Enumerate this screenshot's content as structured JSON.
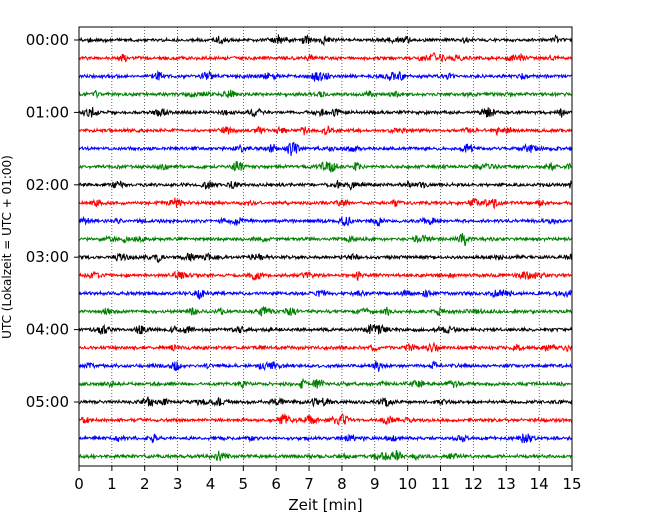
{
  "chart_data": {
    "type": "line",
    "title": "",
    "xlabel": "Zeit  [min]",
    "ylabel": "UTC (Lokalzeit = UTC + 01:00)",
    "xlim": [
      0,
      15
    ],
    "x_ticks": [
      "0",
      "1",
      "2",
      "3",
      "4",
      "5",
      "6",
      "7",
      "8",
      "9",
      "10",
      "11",
      "12",
      "13",
      "14",
      "15"
    ],
    "y_ticks": [
      "00:00",
      "01:00",
      "02:00",
      "03:00",
      "04:00",
      "05:00"
    ],
    "grid": "vertical dotted lines at each minute",
    "traces_per_hour": 4,
    "trace_length_min": 15,
    "trace_color_cycle": [
      "#000000",
      "#ff0000",
      "#0000ff",
      "#008000"
    ],
    "traces": [
      {
        "start": "00:00"
      },
      {
        "start": "00:15"
      },
      {
        "start": "00:30"
      },
      {
        "start": "00:45"
      },
      {
        "start": "01:00"
      },
      {
        "start": "01:15"
      },
      {
        "start": "01:30"
      },
      {
        "start": "01:45"
      },
      {
        "start": "02:00"
      },
      {
        "start": "02:15"
      },
      {
        "start": "02:30"
      },
      {
        "start": "02:45"
      },
      {
        "start": "03:00"
      },
      {
        "start": "03:15"
      },
      {
        "start": "03:30"
      },
      {
        "start": "03:45"
      },
      {
        "start": "04:00"
      },
      {
        "start": "04:15"
      },
      {
        "start": "04:30"
      },
      {
        "start": "04:45"
      },
      {
        "start": "05:00"
      },
      {
        "start": "05:15"
      },
      {
        "start": "05:30"
      },
      {
        "start": "05:45"
      }
    ]
  }
}
